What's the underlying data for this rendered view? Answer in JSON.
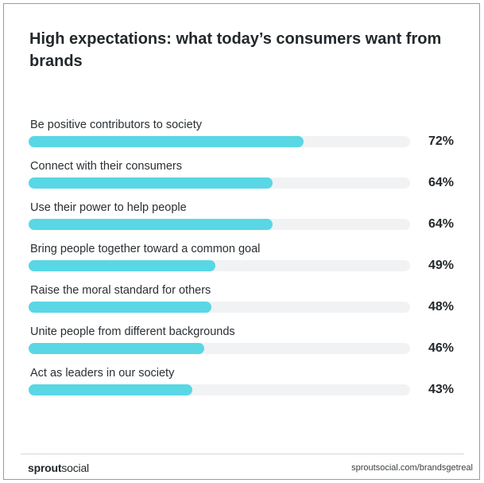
{
  "title": "High expectations: what today’s consumers want from brands",
  "footer": {
    "logo_bold": "sprout",
    "logo_regular": "social",
    "url": "sproutsocial.com/brandsgetreal"
  },
  "colors": {
    "bar_fill": "#59d7e5",
    "bar_track": "#f1f2f3",
    "text": "#23282b"
  },
  "chart_data": {
    "type": "bar",
    "orientation": "horizontal",
    "title": "High expectations: what today’s consumers want from brands",
    "categories": [
      "Be positive contributors to society",
      "Connect with their consumers",
      "Use their power to help people",
      "Bring people together toward a common goal",
      "Raise the moral standard for others",
      "Unite people from different backgrounds",
      "Act as leaders in our society"
    ],
    "values": [
      72,
      64,
      64,
      49,
      48,
      46,
      43
    ],
    "value_labels": [
      "72%",
      "64%",
      "64%",
      "49%",
      "48%",
      "46%",
      "43%"
    ],
    "xlim": [
      0,
      100
    ],
    "grid": false,
    "legend": "none"
  }
}
